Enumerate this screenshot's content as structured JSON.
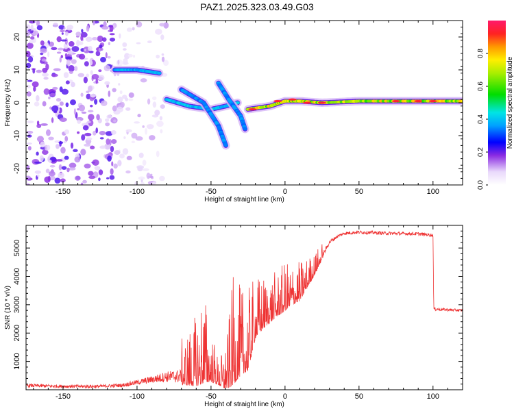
{
  "page_title": "PAZ1.2025.323.03.49.G03",
  "chart_data": [
    {
      "type": "heatmap",
      "title": "PAZ1.2025.323.03.49.G03",
      "xlabel": "Height of straight line (km)",
      "ylabel": "Frequency (Hz)",
      "xlim": [
        -175,
        120
      ],
      "ylim": [
        -25,
        25
      ],
      "xticks": [
        -150,
        -100,
        -50,
        0,
        50,
        100
      ],
      "yticks": [
        20,
        10,
        0,
        -10,
        -20
      ],
      "grid": false,
      "colorbar": {
        "label": "Normalized spectral amplitude",
        "range": [
          0,
          1
        ],
        "ticks": [
          0.0,
          0.2,
          0.4,
          0.6,
          0.8
        ],
        "tick_labels": [
          "0.0",
          "0.2",
          "0.4",
          "0.6",
          "0.8"
        ]
      },
      "ridges": [
        {
          "name": "main-ridge",
          "x": [
            -115,
            -100,
            -85
          ],
          "freq": [
            10,
            10,
            9
          ],
          "amplitude": 0.25
        },
        {
          "name": "descending-band-1",
          "x": [
            -80,
            -65,
            -50,
            -40,
            -32
          ],
          "freq": [
            1,
            -1,
            -2,
            -1,
            0
          ],
          "amplitude": 0.3
        },
        {
          "name": "descending-band-2",
          "x": [
            -70,
            -55,
            -45,
            -40
          ],
          "freq": [
            4,
            0,
            -7,
            -13
          ],
          "amplitude": 0.2
        },
        {
          "name": "descending-band-3",
          "x": [
            -45,
            -38,
            -30,
            -27
          ],
          "freq": [
            6,
            1,
            -4,
            -8
          ],
          "amplitude": 0.2
        },
        {
          "name": "converged-ridge",
          "x": [
            -25,
            -10,
            0,
            10,
            25,
            50,
            75,
            100,
            120
          ],
          "freq": [
            -2,
            -1,
            0.5,
            0.5,
            0,
            0.5,
            0.5,
            0.5,
            0.5
          ],
          "amplitude": 0.95
        }
      ]
    },
    {
      "type": "line",
      "title": "",
      "xlabel": "Height of straight line (km)",
      "ylabel": "SNR (10 * v/v)",
      "xlim": [
        -175,
        120
      ],
      "ylim": [
        0,
        5800
      ],
      "xticks": [
        -150,
        -100,
        -50,
        0,
        50,
        100
      ],
      "yticks": [
        1000,
        2000,
        3000,
        4000,
        5000
      ],
      "grid": false,
      "series": [
        {
          "name": "SNR",
          "color": "#ee3333",
          "x": [
            -175,
            -150,
            -125,
            -110,
            -100,
            -90,
            -80,
            -70,
            -60,
            -55,
            -50,
            -45,
            -40,
            -35,
            -30,
            -25,
            -20,
            -15,
            -10,
            -5,
            0,
            5,
            10,
            15,
            20,
            25,
            30,
            35,
            40,
            50,
            60,
            70,
            80,
            90,
            95,
            100,
            100.5,
            110,
            120
          ],
          "mean": [
            150,
            120,
            120,
            160,
            260,
            360,
            460,
            480,
            600,
            900,
            640,
            350,
            300,
            900,
            1100,
            1200,
            2250,
            2500,
            2700,
            2900,
            3100,
            3300,
            3400,
            3800,
            4200,
            4700,
            5200,
            5400,
            5520,
            5560,
            5540,
            5520,
            5510,
            5500,
            5480,
            5450,
            2850,
            2820,
            2800
          ],
          "noise": [
            120,
            120,
            120,
            130,
            180,
            260,
            380,
            500,
            800,
            1100,
            600,
            300,
            500,
            1200,
            1000,
            900,
            700,
            600,
            550,
            500,
            550,
            500,
            450,
            350,
            250,
            200,
            150,
            120,
            120,
            120,
            120,
            120,
            120,
            120,
            120,
            120,
            120,
            100,
            100
          ]
        }
      ]
    }
  ]
}
